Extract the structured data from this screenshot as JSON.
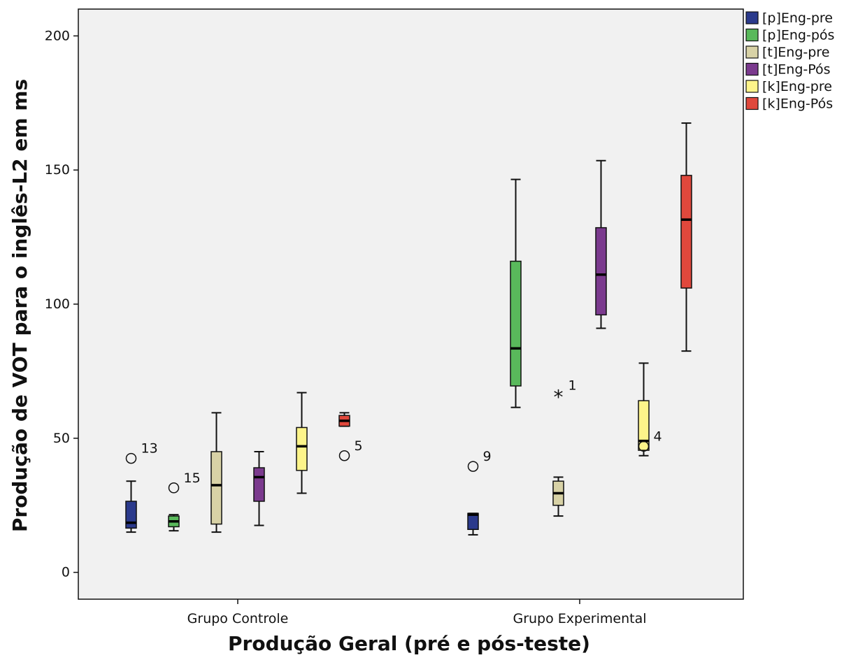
{
  "chart_data": {
    "type": "boxplot",
    "xlabel": "Produção Geral (pré e pós-teste)",
    "ylabel": "Produção de VOT para o inglês-L2 em ms",
    "ylim": [
      -10,
      210
    ],
    "yticks": [
      0,
      50,
      100,
      150,
      200
    ],
    "grid": false,
    "legend_position": "top-right",
    "categories": [
      "Grupo Controle",
      "Grupo Experimental"
    ],
    "series": [
      {
        "name": "[p]Eng-pre",
        "color": "#2b3a8c"
      },
      {
        "name": "[p]Eng-pós",
        "color": "#59b95b"
      },
      {
        "name": "[t]Eng-pre",
        "color": "#d8d2a6"
      },
      {
        "name": "[t]Eng-Pós",
        "color": "#7b3a8e"
      },
      {
        "name": "[k]Eng-pre",
        "color": "#fdf48a"
      },
      {
        "name": "[k]Eng-Pós",
        "color": "#e0483c"
      }
    ],
    "boxes": [
      {
        "category": 0,
        "series": 0,
        "min": 15,
        "q1": 16.5,
        "median": 18.5,
        "q3": 26.5,
        "max": 34,
        "outliers": [
          {
            "value": 42.5,
            "label": "13",
            "marker": "circle"
          }
        ]
      },
      {
        "category": 0,
        "series": 1,
        "min": 15.5,
        "q1": 17,
        "median": 19,
        "q3": 21,
        "max": 21.5,
        "outliers": [
          {
            "value": 31.5,
            "label": "15",
            "marker": "circle"
          }
        ]
      },
      {
        "category": 0,
        "series": 2,
        "min": 15,
        "q1": 18,
        "median": 32.5,
        "q3": 45,
        "max": 59.5,
        "outliers": []
      },
      {
        "category": 0,
        "series": 3,
        "min": 17.5,
        "q1": 26.5,
        "median": 35.5,
        "q3": 39,
        "max": 45,
        "outliers": []
      },
      {
        "category": 0,
        "series": 4,
        "min": 29.5,
        "q1": 38,
        "median": 47,
        "q3": 54,
        "max": 67,
        "outliers": []
      },
      {
        "category": 0,
        "series": 5,
        "min": 54.5,
        "q1": 54.5,
        "median": 56.5,
        "q3": 58.5,
        "max": 59.5,
        "outliers": [
          {
            "value": 43.5,
            "label": "5",
            "marker": "circle"
          }
        ]
      },
      {
        "category": 1,
        "series": 0,
        "min": 14,
        "q1": 16,
        "median": 21.5,
        "q3": 22,
        "max": 22,
        "outliers": [
          {
            "value": 39.5,
            "label": "9",
            "marker": "circle"
          }
        ]
      },
      {
        "category": 1,
        "series": 1,
        "min": 61.5,
        "q1": 69.5,
        "median": 83.5,
        "q3": 116,
        "max": 146.5,
        "outliers": []
      },
      {
        "category": 1,
        "series": 2,
        "min": 21,
        "q1": 25,
        "median": 29.5,
        "q3": 34,
        "max": 35.5,
        "outliers": [
          {
            "value": 66,
            "label": "1",
            "marker": "star"
          }
        ]
      },
      {
        "category": 1,
        "series": 3,
        "min": 91,
        "q1": 96,
        "median": 111,
        "q3": 128.5,
        "max": 153.5,
        "outliers": []
      },
      {
        "category": 1,
        "series": 4,
        "min": 43.5,
        "q1": 45.5,
        "median": 49,
        "q3": 64,
        "max": 78,
        "outliers": [
          {
            "value": 47,
            "label": "4",
            "marker": "circle"
          }
        ]
      },
      {
        "category": 1,
        "series": 5,
        "min": 82.5,
        "q1": 106,
        "median": 131.5,
        "q3": 148,
        "max": 167.5,
        "outliers": []
      }
    ]
  }
}
